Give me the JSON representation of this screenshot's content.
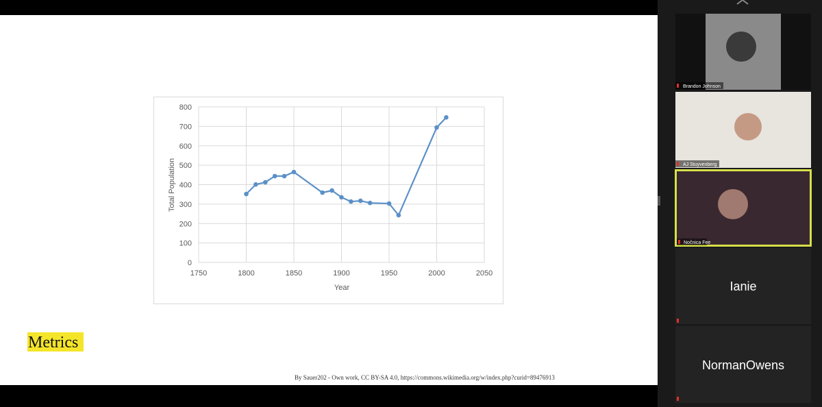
{
  "chart_data": {
    "type": "line",
    "x_label": "Year",
    "y_label": "Total Population",
    "x": [
      1800,
      1810,
      1820,
      1830,
      1840,
      1850,
      1880,
      1890,
      1900,
      1910,
      1920,
      1930,
      1950,
      1960,
      2000,
      2010
    ],
    "values": [
      352,
      401,
      412,
      444,
      444,
      465,
      359,
      370,
      335,
      313,
      317,
      306,
      303,
      243,
      694,
      746
    ],
    "color": "#5b90c8",
    "xlim": [
      1750,
      2050
    ],
    "xticks": [
      1750,
      1800,
      1850,
      1900,
      1950,
      2000,
      2050
    ],
    "ylim": [
      0,
      800
    ],
    "yticks": [
      0,
      100,
      200,
      300,
      400,
      500,
      600,
      700,
      800
    ],
    "grid": true
  },
  "slide_heading": "Metrics",
  "slide_credit": "By Sauer202 - Own work, CC BY-SA 4.0, https://commons.wikimedia.org/w/index.php?curid=89476913",
  "participants": [
    {
      "name": "Brandon Johnson"
    },
    {
      "name": "AJ Stuyvenberg"
    },
    {
      "name": "Nočnica Fee"
    },
    {
      "name": "Ianie"
    },
    {
      "name": "NormanOwens"
    }
  ]
}
